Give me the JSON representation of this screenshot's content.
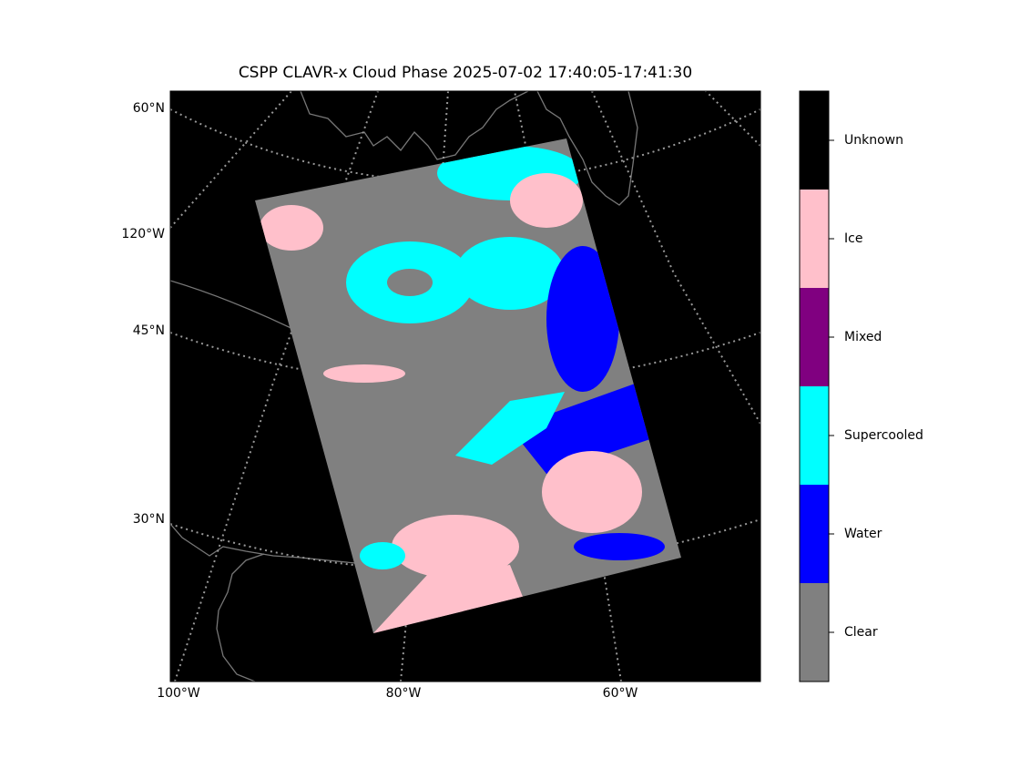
{
  "title": "CSPP CLAVR-x Cloud Phase 2025-07-02 17:40:05-17:41:30",
  "map": {
    "lat_labels": [
      "60°N",
      "45°N",
      "30°N"
    ],
    "lon_labels": [
      "120°W",
      "100°W",
      "80°W",
      "60°W"
    ]
  },
  "legend": {
    "classes": [
      {
        "label": "Unknown",
        "color": "#000000"
      },
      {
        "label": "Ice",
        "color": "#ffc0cb"
      },
      {
        "label": "Mixed",
        "color": "#800080"
      },
      {
        "label": "Supercooled",
        "color": "#00ffff"
      },
      {
        "label": "Water",
        "color": "#0000ff"
      },
      {
        "label": "Clear",
        "color": "#808080"
      }
    ]
  }
}
